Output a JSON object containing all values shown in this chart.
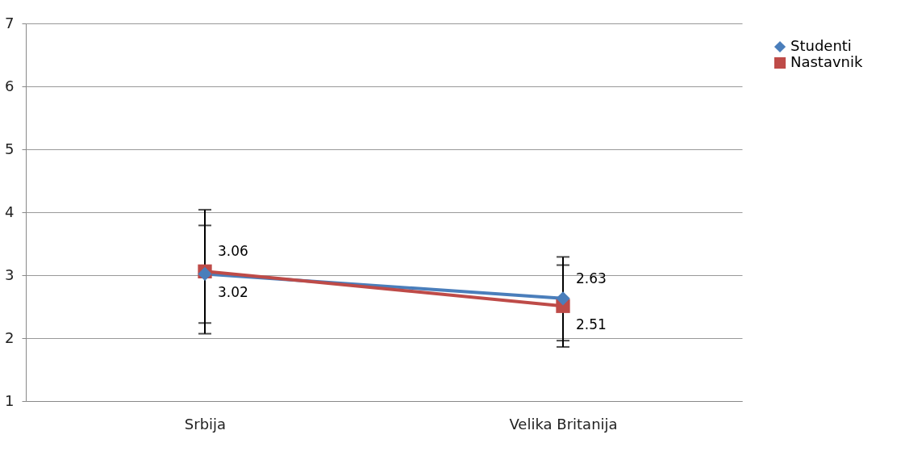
{
  "chart_data": {
    "type": "line",
    "categories": [
      "Srbija",
      "Velika Britanija"
    ],
    "series": [
      {
        "name": "Studenti",
        "color": "#4a7ebb",
        "marker": "diamond",
        "values": [
          3.02,
          2.63
        ],
        "errors": [
          [
            2.07,
            4.04
          ],
          [
            1.96,
            3.29
          ]
        ]
      },
      {
        "name": "Nastavnik",
        "color": "#be4b48",
        "marker": "square",
        "values": [
          3.06,
          2.51
        ],
        "errors": [
          [
            2.24,
            3.79
          ],
          [
            1.86,
            3.16
          ]
        ]
      }
    ],
    "ylim": [
      1,
      7
    ],
    "yticks": [
      1,
      2,
      3,
      4,
      5,
      6,
      7
    ],
    "grid": "y",
    "legend": "right",
    "data_labels": true,
    "line_style": "solid"
  }
}
